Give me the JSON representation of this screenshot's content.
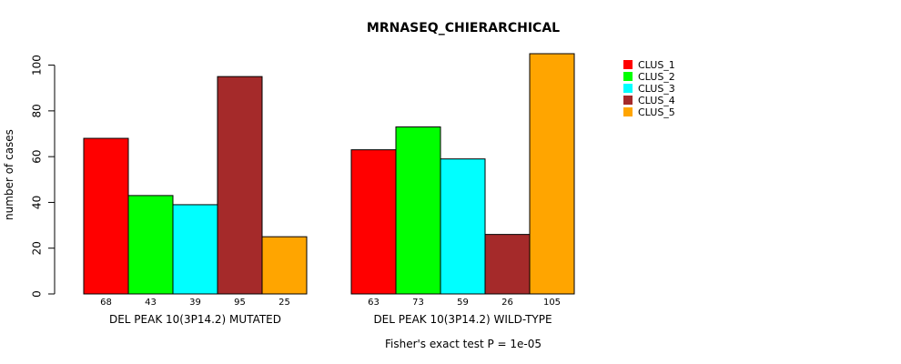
{
  "chart_data": {
    "type": "bar",
    "title": "MRNASEQ_CHIERARCHICAL",
    "ylabel": "number of cases",
    "xlabel": "",
    "ylim": [
      0,
      105
    ],
    "yticks": [
      0,
      20,
      40,
      60,
      80,
      100
    ],
    "groups": [
      "DEL PEAK 10(3P14.2) MUTATED",
      "DEL PEAK 10(3P14.2) WILD-TYPE"
    ],
    "series": [
      {
        "name": "CLUS_1",
        "color": "#ff0000",
        "values": [
          68,
          63
        ]
      },
      {
        "name": "CLUS_2",
        "color": "#00ff00",
        "values": [
          43,
          73
        ]
      },
      {
        "name": "CLUS_3",
        "color": "#00ffff",
        "values": [
          39,
          59
        ]
      },
      {
        "name": "CLUS_4",
        "color": "#a52a2a",
        "values": [
          95,
          26
        ]
      },
      {
        "name": "CLUS_5",
        "color": "#ffa500",
        "values": [
          25,
          105
        ]
      }
    ],
    "value_labels": [
      [
        "68",
        "43",
        "39",
        "95",
        "25"
      ],
      [
        "63",
        "73",
        "59",
        "26",
        "105"
      ]
    ],
    "legend_position": "top-right",
    "footnote": "Fisher's exact test P = 1e-05"
  }
}
